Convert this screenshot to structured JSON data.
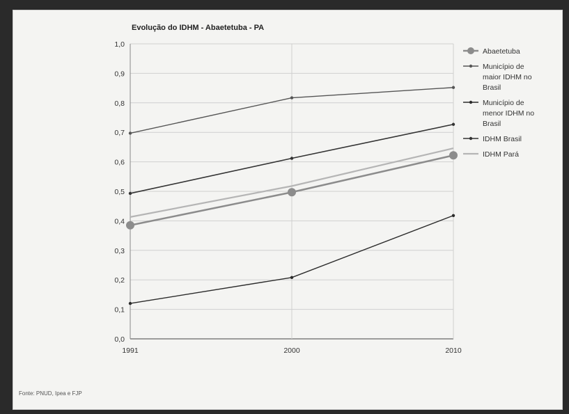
{
  "chart_data": {
    "type": "line",
    "title": "Evolução do IDHM - Abaetetuba - PA",
    "xlabel": "",
    "ylabel": "",
    "categories": [
      "1991",
      "2000",
      "2010"
    ],
    "ylim": [
      0,
      1
    ],
    "yticks": [
      "0,0",
      "0,1",
      "0,2",
      "0,3",
      "0,4",
      "0,5",
      "0,6",
      "0,7",
      "0,8",
      "0,9",
      "1,0"
    ],
    "grid": true,
    "legend_position": "right",
    "series": [
      {
        "name": "Abaetetuba",
        "values": [
          0.385,
          0.497,
          0.622
        ],
        "color": "#8c8c8c",
        "width": 2.5,
        "marker": 6
      },
      {
        "name": "Município de maior IDHM no Brasil",
        "values": [
          0.697,
          0.817,
          0.852
        ],
        "color": "#555555",
        "width": 1.4,
        "marker": 2.2
      },
      {
        "name": "Município de menor IDHM no Brasil",
        "values": [
          0.12,
          0.208,
          0.418
        ],
        "color": "#2b2b2b",
        "width": 1.4,
        "marker": 2.2
      },
      {
        "name": "IDHM Brasil",
        "values": [
          0.493,
          0.612,
          0.727
        ],
        "color": "#333333",
        "width": 1.6,
        "marker": 2.2
      },
      {
        "name": "IDHM Pará",
        "values": [
          0.413,
          0.518,
          0.646
        ],
        "color": "#b5b5b5",
        "width": 2.2,
        "marker": 0
      }
    ],
    "legend_lines": [
      [
        "Abaetetuba"
      ],
      [
        "Município de",
        "maior IDHM no",
        "Brasil"
      ],
      [
        "Município de",
        "menor IDHM no",
        "Brasil"
      ],
      [
        "IDHM Brasil"
      ],
      [
        "IDHM Pará"
      ]
    ]
  },
  "footer": {
    "source": "Fonte: PNUD, Ipea e FJP"
  }
}
